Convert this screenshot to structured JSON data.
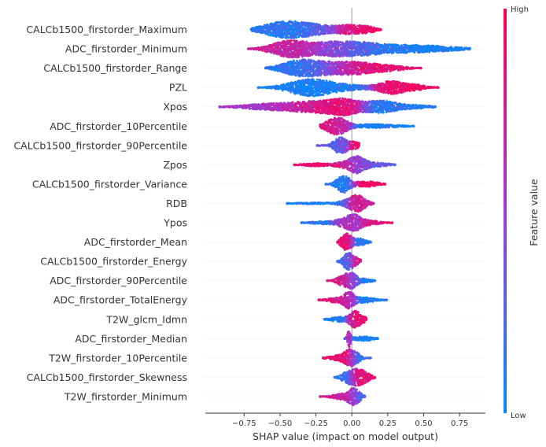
{
  "chart_data": {
    "type": "beeswarm",
    "title": "",
    "xlabel": "SHAP value (impact on model output)",
    "ylabel": "",
    "xlim": [
      -1.02,
      0.93
    ],
    "xticks": [
      -0.75,
      -0.5,
      -0.25,
      0.0,
      0.25,
      0.5,
      0.75
    ],
    "xtick_labels": [
      "−0.75",
      "−0.50",
      "−0.25",
      "0.00",
      "0.25",
      "0.50",
      "0.75"
    ],
    "colorbar": {
      "label": "Feature value",
      "high_label": "High",
      "low_label": "Low",
      "low_color": "#008bfb",
      "high_color": "#ff0052"
    },
    "features": [
      {
        "name": "CALCb1500_firstorder_Maximum",
        "min": -0.7,
        "max": 0.2,
        "peaks": [
          {
            "x": -0.45,
            "w": 0.14,
            "h": 1.0,
            "c": 0.12
          },
          {
            "x": -0.2,
            "w": 0.12,
            "h": 0.35,
            "c": 0.4
          },
          {
            "x": 0.0,
            "w": 0.08,
            "h": 0.45,
            "c": 0.92
          },
          {
            "x": 0.12,
            "w": 0.05,
            "h": 0.25,
            "c": 0.95
          }
        ]
      },
      {
        "name": "ADC_firstorder_Minimum",
        "min": -0.72,
        "max": 0.82,
        "peaks": [
          {
            "x": -0.42,
            "w": 0.12,
            "h": 0.75,
            "c": 0.7
          },
          {
            "x": -0.15,
            "w": 0.1,
            "h": 0.45,
            "c": 0.5
          },
          {
            "x": 0.05,
            "w": 0.12,
            "h": 0.45,
            "c": 0.3
          },
          {
            "x": 0.4,
            "w": 0.25,
            "h": 0.35,
            "c": 0.05
          }
        ]
      },
      {
        "name": "CALCb1500_firstorder_Range",
        "min": -0.6,
        "max": 0.48,
        "peaks": [
          {
            "x": -0.35,
            "w": 0.12,
            "h": 0.95,
            "c": 0.15
          },
          {
            "x": -0.12,
            "w": 0.1,
            "h": 0.5,
            "c": 0.5
          },
          {
            "x": 0.05,
            "w": 0.1,
            "h": 0.55,
            "c": 0.85
          },
          {
            "x": 0.25,
            "w": 0.1,
            "h": 0.3,
            "c": 0.9
          }
        ]
      },
      {
        "name": "PZL",
        "min": -0.65,
        "max": 0.6,
        "peaks": [
          {
            "x": -0.3,
            "w": 0.13,
            "h": 1.0,
            "c": 0.05
          },
          {
            "x": -0.05,
            "w": 0.15,
            "h": 0.3,
            "c": 0.1
          },
          {
            "x": 0.28,
            "w": 0.08,
            "h": 0.8,
            "c": 0.92
          },
          {
            "x": 0.45,
            "w": 0.06,
            "h": 0.3,
            "c": 0.95
          }
        ]
      },
      {
        "name": "Xpos",
        "min": -0.92,
        "max": 0.58,
        "peaks": [
          {
            "x": -0.55,
            "w": 0.18,
            "h": 0.4,
            "c": 0.55
          },
          {
            "x": -0.25,
            "w": 0.13,
            "h": 0.6,
            "c": 0.8
          },
          {
            "x": -0.05,
            "w": 0.09,
            "h": 0.85,
            "c": 0.9
          },
          {
            "x": 0.2,
            "w": 0.1,
            "h": 0.75,
            "c": 0.12
          },
          {
            "x": 0.45,
            "w": 0.1,
            "h": 0.2,
            "c": 0.1
          }
        ]
      },
      {
        "name": "ADC_firstorder_10Percentile",
        "min": -0.22,
        "max": 0.43,
        "peaks": [
          {
            "x": -0.15,
            "w": 0.05,
            "h": 0.55,
            "c": 0.85
          },
          {
            "x": -0.08,
            "w": 0.05,
            "h": 0.8,
            "c": 0.75
          },
          {
            "x": 0.15,
            "w": 0.15,
            "h": 0.25,
            "c": 0.05
          }
        ]
      },
      {
        "name": "CALCb1500_firstorder_90Percentile",
        "min": -0.24,
        "max": 0.05,
        "peaks": [
          {
            "x": -0.08,
            "w": 0.04,
            "h": 0.9,
            "c": 0.3
          },
          {
            "x": 0.02,
            "w": 0.04,
            "h": 0.35,
            "c": 0.9
          }
        ]
      },
      {
        "name": "Zpos",
        "min": -0.4,
        "max": 0.3,
        "peaks": [
          {
            "x": -0.25,
            "w": 0.08,
            "h": 0.2,
            "c": 0.9
          },
          {
            "x": -0.05,
            "w": 0.06,
            "h": 0.3,
            "c": 0.85
          },
          {
            "x": 0.04,
            "w": 0.05,
            "h": 0.95,
            "c": 0.45
          },
          {
            "x": 0.18,
            "w": 0.07,
            "h": 0.25,
            "c": 0.3
          }
        ]
      },
      {
        "name": "CALCb1500_firstorder_Variance",
        "min": -0.18,
        "max": 0.23,
        "peaks": [
          {
            "x": -0.06,
            "w": 0.04,
            "h": 0.9,
            "c": 0.1
          },
          {
            "x": 0.1,
            "w": 0.07,
            "h": 0.3,
            "c": 0.92
          }
        ]
      },
      {
        "name": "RDB",
        "min": -0.45,
        "max": 0.15,
        "peaks": [
          {
            "x": -0.25,
            "w": 0.12,
            "h": 0.12,
            "c": 0.05
          },
          {
            "x": -0.05,
            "w": 0.04,
            "h": 0.3,
            "c": 0.2
          },
          {
            "x": 0.03,
            "w": 0.04,
            "h": 0.9,
            "c": 0.8
          },
          {
            "x": 0.08,
            "w": 0.04,
            "h": 0.3,
            "c": 0.7
          }
        ]
      },
      {
        "name": "Ypos",
        "min": -0.35,
        "max": 0.28,
        "peaks": [
          {
            "x": -0.2,
            "w": 0.08,
            "h": 0.2,
            "c": 0.1
          },
          {
            "x": -0.05,
            "w": 0.05,
            "h": 0.55,
            "c": 0.6
          },
          {
            "x": 0.02,
            "w": 0.04,
            "h": 0.9,
            "c": 0.55
          },
          {
            "x": 0.12,
            "w": 0.06,
            "h": 0.35,
            "c": 0.85
          }
        ]
      },
      {
        "name": "ADC_firstorder_Mean",
        "min": -0.1,
        "max": 0.13,
        "peaks": [
          {
            "x": -0.04,
            "w": 0.03,
            "h": 0.9,
            "c": 0.88
          },
          {
            "x": 0.05,
            "w": 0.04,
            "h": 0.4,
            "c": 0.1
          }
        ]
      },
      {
        "name": "CALCb1500_firstorder_Energy",
        "min": -0.1,
        "max": 0.06,
        "peaks": [
          {
            "x": -0.03,
            "w": 0.03,
            "h": 0.9,
            "c": 0.2
          },
          {
            "x": 0.02,
            "w": 0.03,
            "h": 0.45,
            "c": 0.88
          }
        ]
      },
      {
        "name": "ADC_firstorder_90Percentile",
        "min": -0.17,
        "max": 0.16,
        "peaks": [
          {
            "x": -0.06,
            "w": 0.04,
            "h": 0.65,
            "c": 0.8
          },
          {
            "x": 0.0,
            "w": 0.03,
            "h": 0.8,
            "c": 0.45
          },
          {
            "x": 0.08,
            "w": 0.05,
            "h": 0.25,
            "c": 0.05
          }
        ]
      },
      {
        "name": "ADC_firstorder_TotalEnergy",
        "min": -0.23,
        "max": 0.24,
        "peaks": [
          {
            "x": -0.1,
            "w": 0.06,
            "h": 0.35,
            "c": 0.85
          },
          {
            "x": -0.02,
            "w": 0.03,
            "h": 0.85,
            "c": 0.7
          },
          {
            "x": 0.08,
            "w": 0.07,
            "h": 0.35,
            "c": 0.1
          }
        ]
      },
      {
        "name": "T2W_glcm_Idmn",
        "min": -0.19,
        "max": 0.1,
        "peaks": [
          {
            "x": -0.08,
            "w": 0.06,
            "h": 0.3,
            "c": 0.05
          },
          {
            "x": 0.02,
            "w": 0.03,
            "h": 0.9,
            "c": 0.9
          },
          {
            "x": 0.07,
            "w": 0.03,
            "h": 0.35,
            "c": 0.9
          }
        ]
      },
      {
        "name": "ADC_firstorder_Median",
        "min": -0.05,
        "max": 0.18,
        "peaks": [
          {
            "x": -0.02,
            "w": 0.01,
            "h": 0.65,
            "c": 0.7
          },
          {
            "x": 0.08,
            "w": 0.06,
            "h": 0.2,
            "c": 0.05
          }
        ]
      },
      {
        "name": "T2W_firstorder_10Percentile",
        "min": -0.2,
        "max": 0.13,
        "peaks": [
          {
            "x": -0.09,
            "w": 0.06,
            "h": 0.35,
            "c": 0.9
          },
          {
            "x": -0.02,
            "w": 0.03,
            "h": 0.75,
            "c": 0.8
          },
          {
            "x": 0.03,
            "w": 0.03,
            "h": 0.55,
            "c": 0.1
          }
        ]
      },
      {
        "name": "CALCb1500_firstorder_Skewness",
        "min": -0.12,
        "max": 0.16,
        "peaks": [
          {
            "x": -0.03,
            "w": 0.04,
            "h": 0.65,
            "c": 0.15
          },
          {
            "x": 0.05,
            "w": 0.04,
            "h": 0.9,
            "c": 0.88
          },
          {
            "x": 0.12,
            "w": 0.03,
            "h": 0.25,
            "c": 0.9
          }
        ]
      },
      {
        "name": "T2W_firstorder_Minimum",
        "min": -0.22,
        "max": 0.09,
        "peaks": [
          {
            "x": -0.08,
            "w": 0.05,
            "h": 0.35,
            "c": 0.75
          },
          {
            "x": 0.0,
            "w": 0.03,
            "h": 0.75,
            "c": 0.6
          },
          {
            "x": 0.04,
            "w": 0.03,
            "h": 0.55,
            "c": 0.2
          }
        ]
      }
    ]
  }
}
